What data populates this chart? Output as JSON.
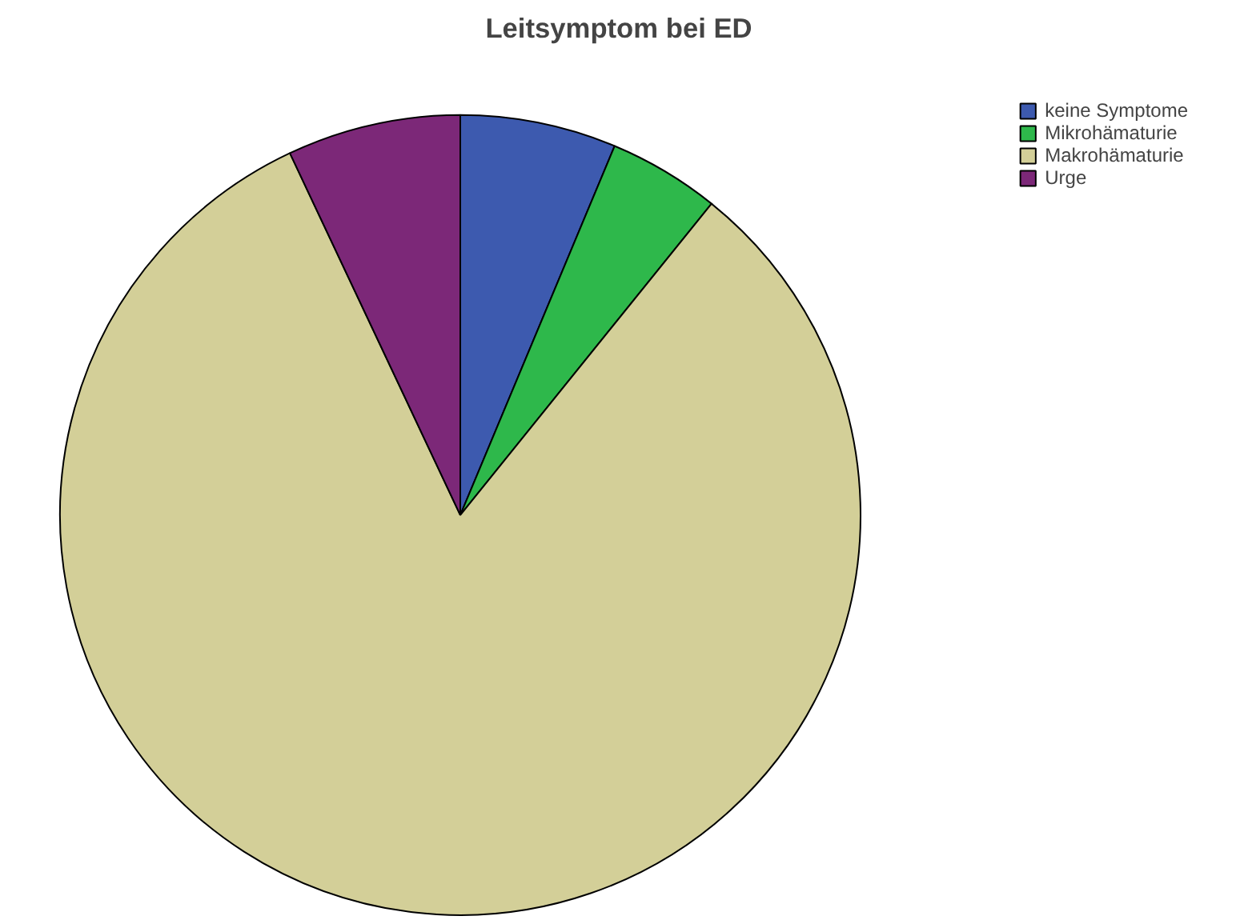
{
  "chart_data": {
    "type": "pie",
    "title": "Leitsymptom bei ED",
    "categories": [
      "keine Symptome",
      "Mikrohämaturie",
      "Makrohämaturie",
      "Urge"
    ],
    "values": [
      6.3,
      4.5,
      82.2,
      7.0
    ],
    "colors": [
      "#3d5aaf",
      "#2eb84b",
      "#d3cf98",
      "#7c2878"
    ],
    "legend": "top right"
  }
}
